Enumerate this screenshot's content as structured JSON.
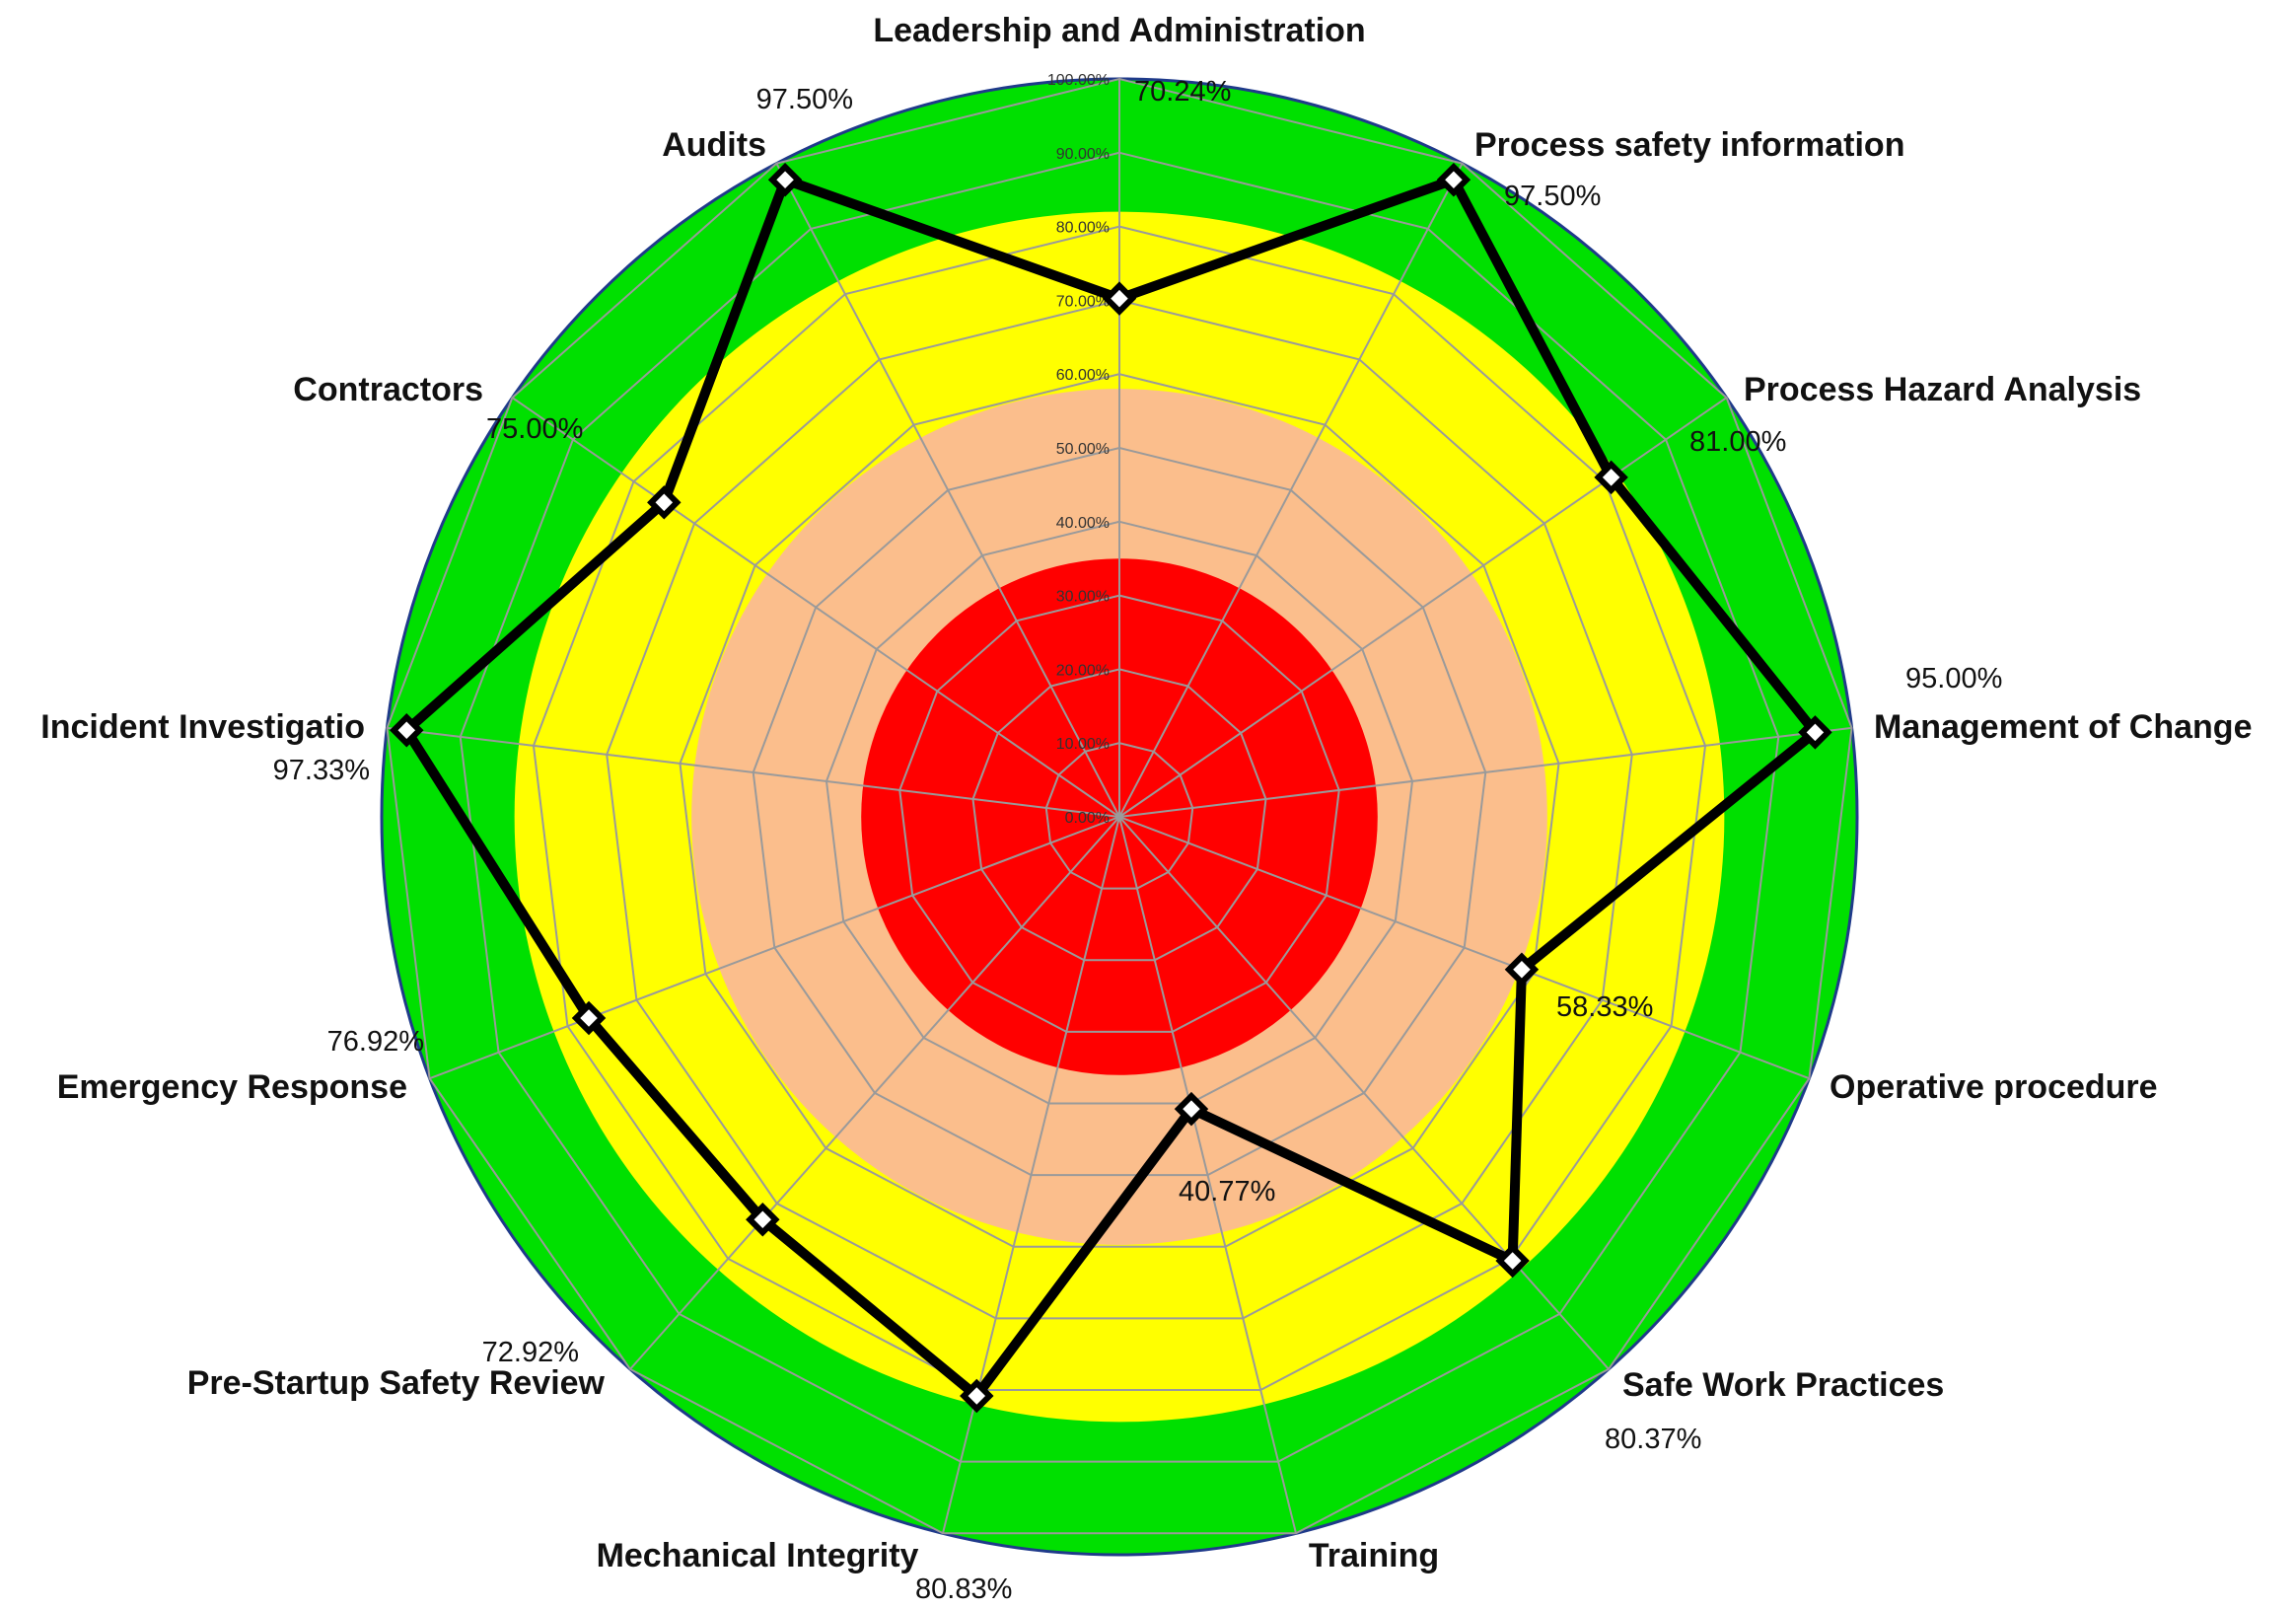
{
  "chart_data": {
    "type": "radar",
    "title": "",
    "categories": [
      "Leadership and Administration",
      "Process safety information",
      "Process Hazard Analysis",
      "Management of Change",
      "Operative procedure",
      "Safe Work Practices",
      "Training",
      "Mechanical Integrity",
      "Pre-Startup Safety Review",
      "Emergency Response",
      "Incident Investigatio",
      "Contractors",
      "Audits"
    ],
    "series": [
      {
        "values": [
          70.24,
          97.5,
          81.0,
          95.0,
          58.33,
          80.37,
          40.77,
          80.83,
          72.92,
          76.92,
          97.33,
          75.0,
          97.5
        ],
        "value_labels": [
          "70.24%",
          "97.50%",
          "81.00%",
          "95.00%",
          "58.33%",
          "80.37%",
          "40.77%",
          "80.83%",
          "72.92%",
          "76.92%",
          "97.33%",
          "75.00%",
          "97.50%"
        ],
        "color": "#000000"
      }
    ],
    "radial_axis": {
      "min": 0,
      "max": 100,
      "ticks": [
        "0.00%",
        "10.00%",
        "20.00%",
        "30.00%",
        "40.00%",
        "50.00%",
        "60.00%",
        "70.00%",
        "80.00%",
        "90.00%",
        "100.00%"
      ],
      "grid": true
    },
    "bands": [
      {
        "from": 0,
        "to": 35,
        "color": "#ff0000"
      },
      {
        "from": 35,
        "to": 58,
        "color": "#fbbe8c"
      },
      {
        "from": 58,
        "to": 82,
        "color": "#ffff00"
      },
      {
        "from": 82,
        "to": 100,
        "color": "#00e000"
      }
    ],
    "grid_color": "#9a9a9a",
    "legend": "none"
  }
}
